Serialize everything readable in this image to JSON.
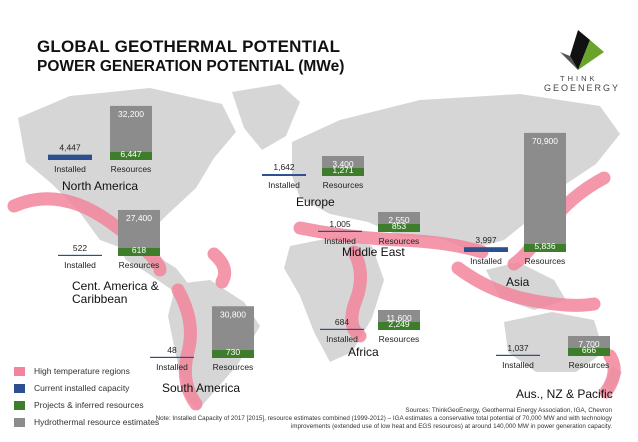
{
  "header": {
    "title": "GLOBAL GEOTHERMAL POTENTIAL",
    "subtitle": "POWER GENERATION POTENTIAL (MWe)"
  },
  "logo": {
    "line1": "THINK",
    "line2": "GEOENERGY"
  },
  "colors": {
    "installed": "#2b4f8f",
    "projects": "#3e7d2c",
    "resources": "#8c8c8c",
    "high_temperature": "#f2859c",
    "land": "#d6d6d6"
  },
  "chart_data": {
    "type": "bar",
    "unit": "MWe",
    "bar_labels": {
      "installed": "Installed",
      "resources": "Resources"
    },
    "regions": [
      {
        "name": "North America",
        "installed": 4447,
        "projects": 6447,
        "resources": 32200
      },
      {
        "name": "Cent. America &\nCaribbean",
        "installed": 522,
        "projects": 618,
        "resources": 27400
      },
      {
        "name": "South America",
        "installed": 48,
        "projects": 730,
        "resources": 30800
      },
      {
        "name": "Europe",
        "installed": 1642,
        "projects": 1271,
        "resources": 3400
      },
      {
        "name": "Middle East",
        "installed": 1005,
        "projects": 853,
        "resources": 2550
      },
      {
        "name": "Africa",
        "installed": 684,
        "projects": 2249,
        "resources": 11600
      },
      {
        "name": "Asia",
        "installed": 3997,
        "projects": 5836,
        "resources": 70900
      },
      {
        "name": "Aus., NZ & Pacific",
        "installed": 1037,
        "projects": 666,
        "resources": 7700
      }
    ],
    "value_labels": {
      "North America": {
        "installed": "4,447",
        "projects": "6,447",
        "resources": "32,200"
      },
      "Cent. America &\nCaribbean": {
        "installed": "522",
        "projects": "618",
        "resources": "27,400"
      },
      "South America": {
        "installed": "48",
        "projects": "730",
        "resources": "30,800"
      },
      "Europe": {
        "installed": "1,642",
        "projects": "1,271",
        "resources": "3,400"
      },
      "Middle East": {
        "installed": "1,005",
        "projects": "853",
        "resources": "2,550"
      },
      "Africa": {
        "installed": "684",
        "projects": "2,249",
        "resources": "11,600"
      },
      "Asia": {
        "installed": "3,997",
        "projects": "5,836",
        "resources": "70,900"
      },
      "Aus., NZ & Pacific": {
        "installed": "1,037",
        "projects": "666",
        "resources": "7,700"
      }
    },
    "legend": [
      {
        "label": "High temperature regions",
        "color": "#f2859c"
      },
      {
        "label": "Current installed capacity",
        "color": "#2b4f8f"
      },
      {
        "label": "Projects & inferred resources",
        "color": "#3e7d2c"
      },
      {
        "label": "Hydrothermal resource estimates",
        "color": "#8c8c8c"
      }
    ]
  },
  "notes": {
    "sources": "Sources: ThinkGeoEnergy, Geothermal Energy Association, IGA, Chevron",
    "note": "Note: Installed Capacity of 2017 [2015], resource estimates combined (1999-2012) – IGA estimates a conservative total potential of 70,000 MW and with technology improvements (extended use of low heat and EGS resources) at around 140,000 MW in power generation capacity."
  }
}
